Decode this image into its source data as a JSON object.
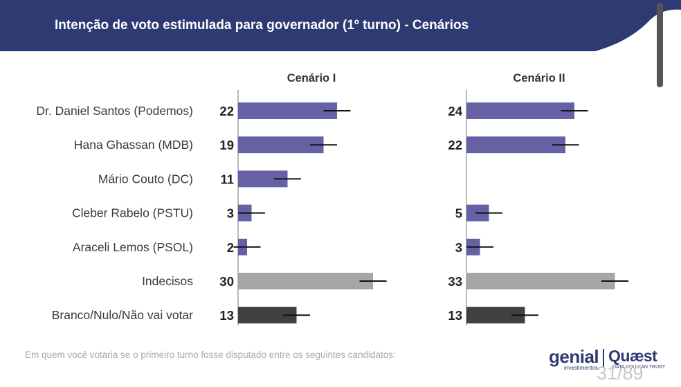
{
  "header": {
    "title": "Intenção de voto estimulada para governador (1º turno) - Cenários",
    "background_color": "#2e3a72"
  },
  "chart_data": {
    "type": "bar",
    "orientation": "horizontal",
    "title": "Intenção de voto estimulada para governador (1º turno) - Cenários",
    "categories": [
      "Dr. Daniel Santos (Podemos)",
      "Hana Ghassan (MDB)",
      "Mário Couto (DC)",
      "Cleber Rabelo (PSTU)",
      "Araceli Lemos (PSOL)",
      "Indecisos",
      "Branco/Nulo/Não vai votar"
    ],
    "category_colors": [
      "#6660a5",
      "#6660a5",
      "#6660a5",
      "#6660a5",
      "#6660a5",
      "#a6a6a6",
      "#404040"
    ],
    "error_margin": 3,
    "grid": false,
    "legend": "none",
    "series": [
      {
        "name": "Cenário I",
        "values": [
          22,
          19,
          11,
          3,
          2,
          30,
          13
        ]
      },
      {
        "name": "Cenário II",
        "values": [
          24,
          22,
          null,
          5,
          3,
          33,
          13
        ]
      }
    ]
  },
  "footnote": "Em quem você votaria se o primeiro turno fosse disputado entre os seguintes candidatos:",
  "logo": {
    "genial": "genial",
    "genial_sub": "investimentos",
    "quaest": "Quæst",
    "quaest_sub": "DATA YOU CAN TRUST",
    "color": "#2e3a72"
  },
  "page_counter": "31/89"
}
